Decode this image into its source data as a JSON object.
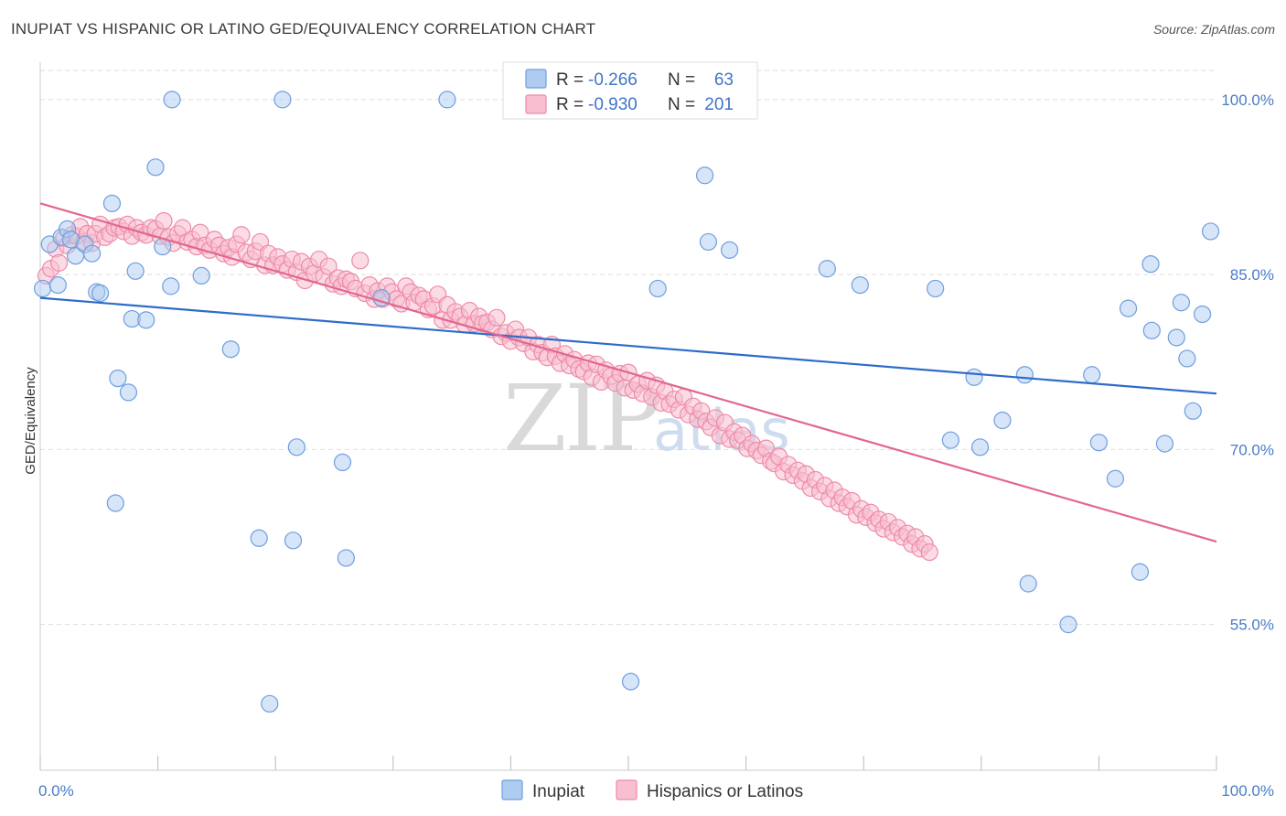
{
  "title": "INUPIAT VS HISPANIC OR LATINO GED/EQUIVALENCY CORRELATION CHART",
  "source": "Source: ZipAtlas.com",
  "watermark": {
    "zip": "ZIP",
    "atlas": "atlas"
  },
  "colors": {
    "inupiat_fill": "#aecbf0",
    "inupiat_stroke": "#6f9ee0",
    "inupiat_line": "#2e6cc9",
    "hispanic_fill": "#f7bfd0",
    "hispanic_stroke": "#ee8aa9",
    "hispanic_line": "#e3668f",
    "tick_label": "#4a7cc7",
    "grid": "#dddddd"
  },
  "legend": {
    "rows": [
      {
        "r_label": "R =",
        "r_value": "-0.266",
        "n_label": "N =",
        "n_value": "63"
      },
      {
        "r_label": "R =",
        "r_value": "-0.930",
        "n_label": "N =",
        "n_value": "201"
      }
    ]
  },
  "chart_data": {
    "type": "scatter",
    "title": "INUPIAT VS HISPANIC OR LATINO GED/EQUIVALENCY CORRELATION CHART",
    "xlabel": "",
    "ylabel": "GED/Equivalency",
    "xlim": [
      0,
      100
    ],
    "ylim": [
      42.5,
      102.5
    ],
    "x_tick_labels": [
      "0.0%",
      "100.0%"
    ],
    "y_ticks": [
      55,
      70,
      85,
      100
    ],
    "y_tick_labels": [
      "55.0%",
      "70.0%",
      "85.0%",
      "100.0%"
    ],
    "grid": true,
    "legend_position": "top-center",
    "series": [
      {
        "name": "Inupiat",
        "r": -0.266,
        "n": 63,
        "trend": [
          [
            0,
            83.0
          ],
          [
            100,
            74.8
          ]
        ],
        "points": [
          [
            0.2,
            83.8
          ],
          [
            0.8,
            87.6
          ],
          [
            1.5,
            84.1
          ],
          [
            1.8,
            88.2
          ],
          [
            2.3,
            88.9
          ],
          [
            2.6,
            88.0
          ],
          [
            3.0,
            86.6
          ],
          [
            3.8,
            87.6
          ],
          [
            4.4,
            86.8
          ],
          [
            4.8,
            83.5
          ],
          [
            5.1,
            83.4
          ],
          [
            6.1,
            91.1
          ],
          [
            6.4,
            65.4
          ],
          [
            6.6,
            76.1
          ],
          [
            7.5,
            74.9
          ],
          [
            7.8,
            81.2
          ],
          [
            8.1,
            85.3
          ],
          [
            9.0,
            81.1
          ],
          [
            9.8,
            94.2
          ],
          [
            10.4,
            87.4
          ],
          [
            11.1,
            84.0
          ],
          [
            11.2,
            100.0
          ],
          [
            13.7,
            84.9
          ],
          [
            16.2,
            78.6
          ],
          [
            18.6,
            62.4
          ],
          [
            19.5,
            48.2
          ],
          [
            20.6,
            100.0
          ],
          [
            21.5,
            62.2
          ],
          [
            21.8,
            70.2
          ],
          [
            25.7,
            68.9
          ],
          [
            26.0,
            60.7
          ],
          [
            29.0,
            83.0
          ],
          [
            34.6,
            100.0
          ],
          [
            50.0,
            100.0
          ],
          [
            50.2,
            50.1
          ],
          [
            52.5,
            83.8
          ],
          [
            56.5,
            93.5
          ],
          [
            56.8,
            87.8
          ],
          [
            58.6,
            87.1
          ],
          [
            66.9,
            85.5
          ],
          [
            69.7,
            84.1
          ],
          [
            76.1,
            83.8
          ],
          [
            77.4,
            70.8
          ],
          [
            79.4,
            76.2
          ],
          [
            79.9,
            70.2
          ],
          [
            81.8,
            72.5
          ],
          [
            83.7,
            76.4
          ],
          [
            84.0,
            58.5
          ],
          [
            87.4,
            55.0
          ],
          [
            89.4,
            76.4
          ],
          [
            90.0,
            70.6
          ],
          [
            91.4,
            67.5
          ],
          [
            92.5,
            82.1
          ],
          [
            93.5,
            59.5
          ],
          [
            94.4,
            85.9
          ],
          [
            94.5,
            80.2
          ],
          [
            95.6,
            70.5
          ],
          [
            96.6,
            79.6
          ],
          [
            97.0,
            82.6
          ],
          [
            97.5,
            77.8
          ],
          [
            98.0,
            73.3
          ],
          [
            98.8,
            81.6
          ],
          [
            99.5,
            88.7
          ]
        ]
      },
      {
        "name": "Hispanics or Latinos",
        "r": -0.93,
        "n": 201,
        "trend": [
          [
            0,
            91.1
          ],
          [
            100,
            62.1
          ]
        ],
        "points": [
          [
            0.5,
            84.9
          ],
          [
            0.9,
            85.5
          ],
          [
            1.3,
            87.2
          ],
          [
            1.6,
            86.0
          ],
          [
            2.0,
            88.1
          ],
          [
            2.3,
            87.5
          ],
          [
            2.7,
            88.4
          ],
          [
            3.1,
            88.3
          ],
          [
            3.4,
            89.1
          ],
          [
            3.7,
            87.8
          ],
          [
            4.0,
            88.5
          ],
          [
            4.4,
            87.7
          ],
          [
            4.7,
            88.5
          ],
          [
            5.1,
            89.3
          ],
          [
            5.5,
            88.2
          ],
          [
            5.9,
            88.5
          ],
          [
            6.3,
            89.0
          ],
          [
            6.7,
            89.1
          ],
          [
            7.1,
            88.7
          ],
          [
            7.4,
            89.3
          ],
          [
            7.8,
            88.3
          ],
          [
            8.2,
            89.0
          ],
          [
            8.6,
            88.6
          ],
          [
            9.0,
            88.4
          ],
          [
            9.4,
            89.0
          ],
          [
            9.8,
            88.9
          ],
          [
            10.2,
            88.3
          ],
          [
            10.5,
            89.6
          ],
          [
            10.9,
            88.2
          ],
          [
            11.3,
            87.7
          ],
          [
            11.7,
            88.5
          ],
          [
            12.1,
            89.0
          ],
          [
            12.5,
            87.8
          ],
          [
            12.9,
            88.0
          ],
          [
            13.3,
            87.4
          ],
          [
            13.6,
            88.6
          ],
          [
            14.0,
            87.5
          ],
          [
            14.4,
            87.1
          ],
          [
            14.8,
            88.0
          ],
          [
            15.2,
            87.5
          ],
          [
            15.6,
            86.8
          ],
          [
            16.0,
            87.3
          ],
          [
            16.3,
            86.5
          ],
          [
            16.7,
            87.6
          ],
          [
            17.1,
            88.4
          ],
          [
            17.5,
            86.9
          ],
          [
            17.9,
            86.3
          ],
          [
            18.3,
            87.0
          ],
          [
            18.7,
            87.8
          ],
          [
            19.1,
            85.8
          ],
          [
            19.4,
            86.8
          ],
          [
            19.8,
            85.8
          ],
          [
            20.2,
            86.5
          ],
          [
            20.6,
            85.9
          ],
          [
            21.0,
            85.4
          ],
          [
            21.4,
            86.3
          ],
          [
            21.8,
            85.2
          ],
          [
            22.2,
            86.1
          ],
          [
            22.5,
            84.5
          ],
          [
            22.9,
            85.7
          ],
          [
            23.3,
            85.1
          ],
          [
            23.7,
            86.3
          ],
          [
            24.1,
            84.8
          ],
          [
            24.5,
            85.7
          ],
          [
            24.9,
            84.2
          ],
          [
            25.3,
            84.7
          ],
          [
            25.6,
            84.0
          ],
          [
            26.0,
            84.6
          ],
          [
            26.4,
            84.4
          ],
          [
            26.8,
            83.8
          ],
          [
            27.2,
            86.2
          ],
          [
            27.6,
            83.4
          ],
          [
            28.0,
            84.1
          ],
          [
            28.4,
            82.9
          ],
          [
            28.7,
            83.6
          ],
          [
            29.1,
            82.9
          ],
          [
            29.5,
            84.0
          ],
          [
            29.9,
            83.5
          ],
          [
            30.3,
            82.9
          ],
          [
            30.7,
            82.5
          ],
          [
            31.1,
            84.0
          ],
          [
            31.5,
            83.5
          ],
          [
            31.8,
            82.6
          ],
          [
            32.2,
            83.2
          ],
          [
            32.6,
            82.9
          ],
          [
            33.0,
            82.0
          ],
          [
            33.4,
            82.3
          ],
          [
            33.8,
            83.3
          ],
          [
            34.2,
            81.1
          ],
          [
            34.6,
            82.4
          ],
          [
            34.9,
            81.1
          ],
          [
            35.3,
            81.8
          ],
          [
            35.7,
            81.4
          ],
          [
            36.1,
            80.7
          ],
          [
            36.5,
            81.9
          ],
          [
            36.9,
            80.8
          ],
          [
            37.3,
            81.4
          ],
          [
            37.6,
            80.8
          ],
          [
            38.0,
            80.9
          ],
          [
            38.4,
            80.3
          ],
          [
            38.8,
            81.3
          ],
          [
            39.2,
            79.7
          ],
          [
            39.6,
            80.0
          ],
          [
            40.0,
            79.3
          ],
          [
            40.4,
            80.3
          ],
          [
            40.7,
            79.6
          ],
          [
            41.1,
            79.1
          ],
          [
            41.5,
            79.6
          ],
          [
            41.9,
            78.4
          ],
          [
            42.3,
            79.0
          ],
          [
            42.7,
            78.3
          ],
          [
            43.1,
            77.9
          ],
          [
            43.5,
            79.0
          ],
          [
            43.8,
            78.0
          ],
          [
            44.2,
            77.4
          ],
          [
            44.6,
            78.2
          ],
          [
            45.0,
            77.2
          ],
          [
            45.4,
            77.7
          ],
          [
            45.8,
            76.9
          ],
          [
            46.2,
            76.7
          ],
          [
            46.6,
            77.4
          ],
          [
            46.9,
            76.2
          ],
          [
            47.3,
            77.3
          ],
          [
            47.7,
            75.8
          ],
          [
            48.1,
            76.8
          ],
          [
            48.5,
            76.3
          ],
          [
            48.9,
            75.7
          ],
          [
            49.3,
            76.5
          ],
          [
            49.7,
            75.3
          ],
          [
            50.0,
            76.6
          ],
          [
            50.4,
            75.1
          ],
          [
            50.8,
            75.6
          ],
          [
            51.2,
            74.8
          ],
          [
            51.6,
            75.9
          ],
          [
            52.0,
            74.5
          ],
          [
            52.4,
            75.5
          ],
          [
            52.8,
            74.0
          ],
          [
            53.1,
            75.0
          ],
          [
            53.5,
            73.9
          ],
          [
            53.9,
            74.3
          ],
          [
            54.3,
            73.4
          ],
          [
            54.7,
            74.5
          ],
          [
            55.1,
            73.0
          ],
          [
            55.5,
            73.7
          ],
          [
            55.9,
            72.6
          ],
          [
            56.2,
            73.3
          ],
          [
            56.6,
            72.4
          ],
          [
            57.0,
            71.9
          ],
          [
            57.4,
            72.7
          ],
          [
            57.8,
            71.2
          ],
          [
            58.2,
            72.3
          ],
          [
            58.6,
            70.9
          ],
          [
            59.0,
            71.5
          ],
          [
            59.3,
            70.8
          ],
          [
            59.7,
            71.2
          ],
          [
            60.1,
            70.1
          ],
          [
            60.5,
            70.5
          ],
          [
            60.9,
            69.9
          ],
          [
            61.3,
            69.5
          ],
          [
            61.7,
            70.1
          ],
          [
            62.1,
            69.0
          ],
          [
            62.4,
            68.8
          ],
          [
            62.8,
            69.4
          ],
          [
            63.2,
            68.1
          ],
          [
            63.6,
            68.7
          ],
          [
            64.0,
            67.8
          ],
          [
            64.4,
            68.2
          ],
          [
            64.8,
            67.3
          ],
          [
            65.1,
            67.9
          ],
          [
            65.5,
            66.7
          ],
          [
            65.9,
            67.4
          ],
          [
            66.3,
            66.4
          ],
          [
            66.7,
            66.9
          ],
          [
            67.1,
            65.8
          ],
          [
            67.5,
            66.5
          ],
          [
            67.9,
            65.4
          ],
          [
            68.2,
            65.9
          ],
          [
            68.6,
            65.1
          ],
          [
            69.0,
            65.6
          ],
          [
            69.4,
            64.4
          ],
          [
            69.8,
            64.9
          ],
          [
            70.2,
            64.2
          ],
          [
            70.6,
            64.6
          ],
          [
            71.0,
            63.7
          ],
          [
            71.3,
            64.0
          ],
          [
            71.7,
            63.2
          ],
          [
            72.1,
            63.8
          ],
          [
            72.5,
            62.9
          ],
          [
            72.9,
            63.3
          ],
          [
            73.3,
            62.5
          ],
          [
            73.7,
            62.8
          ],
          [
            74.1,
            61.9
          ],
          [
            74.4,
            62.5
          ],
          [
            74.8,
            61.5
          ],
          [
            75.2,
            61.9
          ],
          [
            75.6,
            61.2
          ]
        ]
      }
    ]
  },
  "bottom_legend": [
    {
      "label": "Inupiat"
    },
    {
      "label": "Hispanics or Latinos"
    }
  ]
}
